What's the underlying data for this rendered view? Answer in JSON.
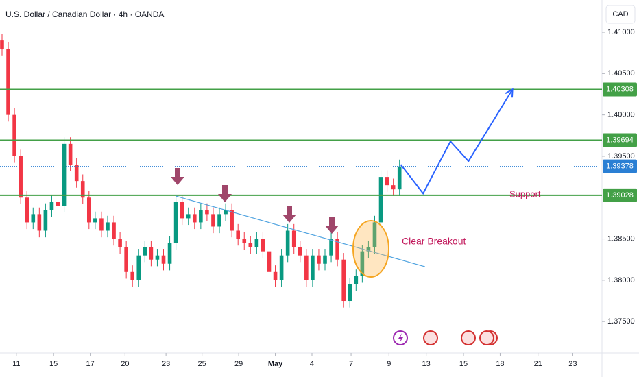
{
  "chart_data": {
    "type": "candlestick",
    "title": "U.S. Dollar / Canadian Dollar · 4h · OANDA",
    "currency": "CAD",
    "up_color": "#089981",
    "down_color": "#f23645",
    "x": [
      0,
      1,
      2,
      3,
      4,
      5,
      6,
      7,
      8,
      9,
      10,
      11,
      12,
      13,
      14,
      15,
      16,
      17,
      18,
      19,
      20,
      21,
      22,
      23,
      24,
      25,
      26,
      27,
      28,
      29,
      30,
      31,
      32,
      33,
      34,
      35,
      36,
      37,
      38,
      39,
      40,
      41,
      42,
      43,
      44,
      45,
      46,
      47,
      48,
      49,
      50,
      51,
      52,
      53,
      54,
      55,
      56,
      57,
      58,
      59,
      60,
      61,
      62,
      63,
      64
    ],
    "open": [
      1.409,
      1.408,
      1.4,
      1.395,
      1.39,
      1.387,
      1.388,
      1.386,
      1.3885,
      1.3895,
      1.389,
      1.3965,
      1.394,
      1.392,
      1.39,
      1.387,
      1.3875,
      1.386,
      1.387,
      1.385,
      1.384,
      1.381,
      1.38,
      1.383,
      1.384,
      1.3825,
      1.383,
      1.382,
      1.3845,
      1.3895,
      1.3875,
      1.388,
      1.387,
      1.3885,
      1.388,
      1.3865,
      1.388,
      1.3885,
      1.386,
      1.385,
      1.3845,
      1.384,
      1.385,
      1.3835,
      1.381,
      1.38,
      1.383,
      1.386,
      1.384,
      1.383,
      1.38,
      1.383,
      1.382,
      1.383,
      1.385,
      1.3825,
      1.3775,
      1.3795,
      1.3805,
      1.3835,
      1.384,
      1.387,
      1.3925,
      1.3915,
      1.391
    ],
    "high": [
      1.4098,
      1.4088,
      1.4008,
      1.3958,
      1.3908,
      1.3888,
      1.3888,
      1.3893,
      1.3903,
      1.3903,
      1.3973,
      1.3973,
      1.3948,
      1.3928,
      1.3908,
      1.3883,
      1.3883,
      1.3878,
      1.3878,
      1.3858,
      1.3848,
      1.3818,
      1.3838,
      1.3848,
      1.3848,
      1.3838,
      1.3838,
      1.3853,
      1.3903,
      1.3903,
      1.3888,
      1.3888,
      1.3893,
      1.3893,
      1.3888,
      1.3888,
      1.3893,
      1.3893,
      1.3868,
      1.3858,
      1.3853,
      1.3858,
      1.3858,
      1.3843,
      1.3818,
      1.3838,
      1.3868,
      1.3868,
      1.3848,
      1.3838,
      1.3838,
      1.3838,
      1.3838,
      1.3858,
      1.3858,
      1.3833,
      1.3803,
      1.3813,
      1.3843,
      1.3848,
      1.3878,
      1.3933,
      1.3933,
      1.3923,
      1.3946
    ],
    "low": [
      1.4072,
      1.3992,
      1.3942,
      1.3892,
      1.3862,
      1.3862,
      1.3852,
      1.3852,
      1.3877,
      1.3882,
      1.3882,
      1.3932,
      1.3912,
      1.3892,
      1.3862,
      1.3862,
      1.3852,
      1.3852,
      1.3842,
      1.3832,
      1.3802,
      1.3792,
      1.3792,
      1.3822,
      1.3817,
      1.3817,
      1.3812,
      1.3812,
      1.3837,
      1.3867,
      1.3867,
      1.3862,
      1.3862,
      1.3872,
      1.3857,
      1.3857,
      1.3872,
      1.3852,
      1.3842,
      1.3837,
      1.3832,
      1.3832,
      1.3827,
      1.3802,
      1.3792,
      1.3792,
      1.3822,
      1.3832,
      1.3822,
      1.3792,
      1.3792,
      1.3812,
      1.3812,
      1.3822,
      1.3817,
      1.3767,
      1.3767,
      1.3787,
      1.3797,
      1.3827,
      1.3832,
      1.3862,
      1.3907,
      1.3902,
      1.3902
    ],
    "close": [
      1.408,
      1.4,
      1.395,
      1.39,
      1.387,
      1.388,
      1.386,
      1.3885,
      1.3895,
      1.389,
      1.3965,
      1.394,
      1.392,
      1.39,
      1.387,
      1.3875,
      1.386,
      1.387,
      1.385,
      1.384,
      1.381,
      1.38,
      1.383,
      1.384,
      1.3825,
      1.383,
      1.382,
      1.3845,
      1.3895,
      1.3875,
      1.388,
      1.387,
      1.3885,
      1.388,
      1.3865,
      1.388,
      1.3885,
      1.386,
      1.385,
      1.3845,
      1.384,
      1.385,
      1.3835,
      1.381,
      1.38,
      1.383,
      1.386,
      1.384,
      1.383,
      1.38,
      1.383,
      1.382,
      1.383,
      1.385,
      1.3825,
      1.3775,
      1.3795,
      1.3805,
      1.3835,
      1.384,
      1.387,
      1.3925,
      1.3915,
      1.391,
      1.39378
    ],
    "xlim": [
      -0.33,
      96.6
    ],
    "xticks": [
      {
        "value": 2.3,
        "label": "11"
      },
      {
        "value": 8.3,
        "label": "15"
      },
      {
        "value": 14.2,
        "label": "17"
      },
      {
        "value": 19.8,
        "label": "20"
      },
      {
        "value": 26.4,
        "label": "23"
      },
      {
        "value": 32.2,
        "label": "25"
      },
      {
        "value": 38.1,
        "label": "29"
      },
      {
        "value": 44.0,
        "label": "May"
      },
      {
        "value": 49.9,
        "label": "4"
      },
      {
        "value": 56.2,
        "label": "7"
      },
      {
        "value": 62.3,
        "label": "9"
      },
      {
        "value": 68.3,
        "label": "13"
      },
      {
        "value": 74.3,
        "label": "15"
      },
      {
        "value": 80.2,
        "label": "18"
      },
      {
        "value": 86.3,
        "label": "21"
      },
      {
        "value": 91.9,
        "label": "23"
      }
    ],
    "ylim": [
      1.3712,
      1.4139
    ],
    "yticks": [
      {
        "value": 1.375,
        "label": "1.37500"
      },
      {
        "value": 1.38,
        "label": "1.38000"
      },
      {
        "value": 1.385,
        "label": "1.38500"
      },
      {
        "value": 1.395,
        "label": "1.39500"
      },
      {
        "value": 1.4,
        "label": "1.40000"
      },
      {
        "value": 1.405,
        "label": "1.40500"
      },
      {
        "value": 1.41,
        "label": "1.41000"
      }
    ],
    "levels": [
      {
        "value": 1.40308,
        "label": "1.40308"
      },
      {
        "value": 1.39694,
        "label": "1.39694"
      },
      {
        "value": 1.39028,
        "label": "1.39028"
      }
    ],
    "level_color": "#43a047",
    "last_price": {
      "value": 1.39378,
      "label": "1.39378"
    },
    "last_color": "#2a7fd4",
    "trendline": {
      "x": [
        28.0,
        68.1
      ],
      "y": [
        1.39018,
        1.38164
      ],
      "color": "#4fa3e0"
    },
    "projection": {
      "x": [
        64.2,
        67.8,
        72.2,
        75.1,
        82.2
      ],
      "y": [
        1.394,
        1.3905,
        1.3968,
        1.3944,
        1.4031
      ],
      "color": "#2962ff"
    },
    "annotations": [
      "Support",
      "Clear Breakout"
    ]
  }
}
